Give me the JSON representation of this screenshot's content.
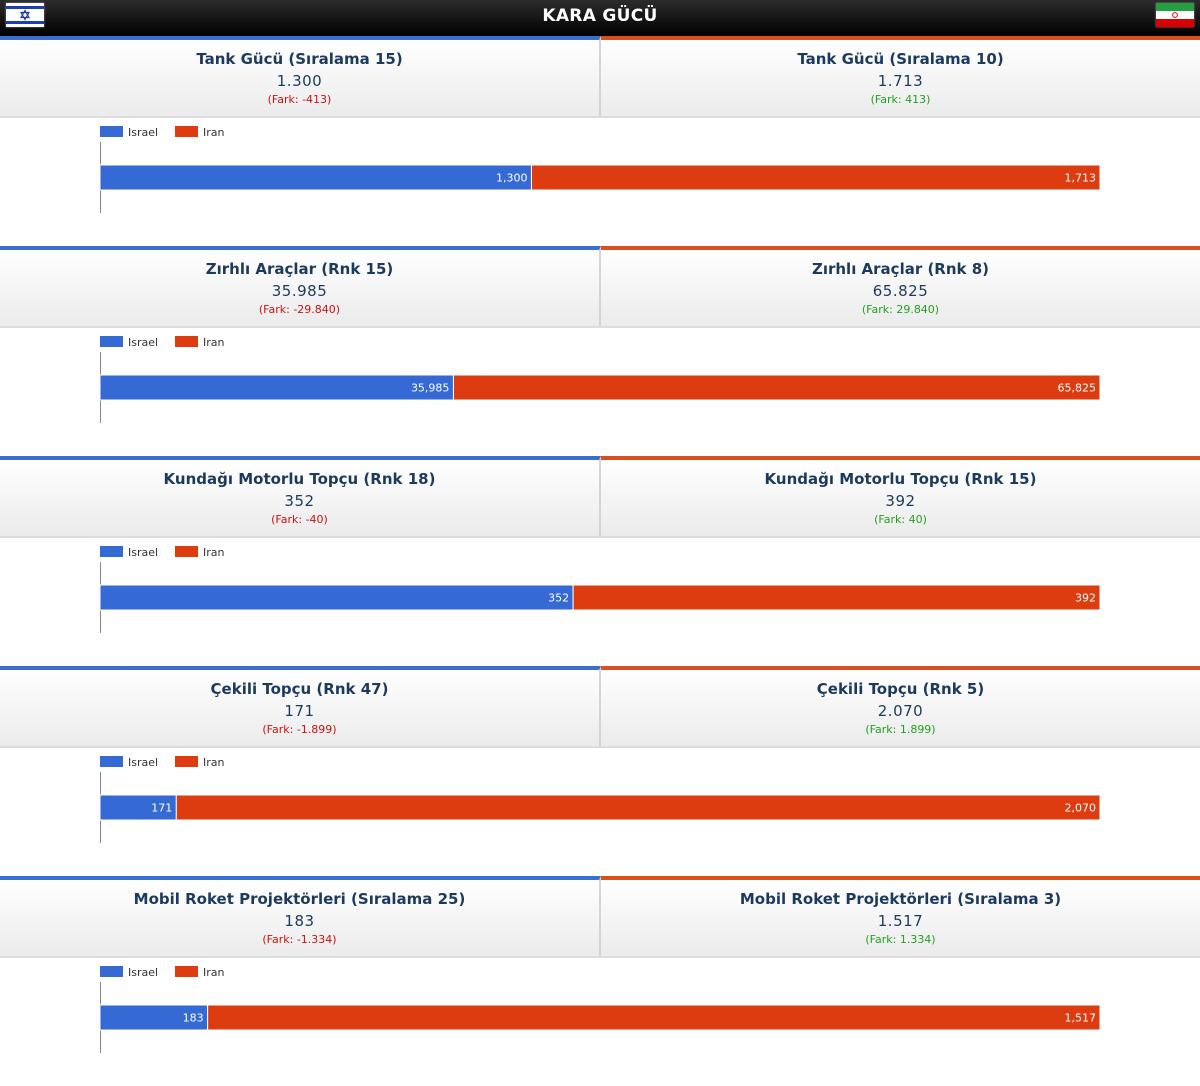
{
  "header": {
    "title": "KARA GÜCÜ",
    "left_flag": "israel-flag",
    "right_flag": "iran-flag"
  },
  "colors": {
    "israel": "#3569d3",
    "iran": "#dd3b10",
    "diff_negative": "#cc1111",
    "diff_positive": "#22a022"
  },
  "sections": [
    {
      "left": {
        "label": "Tank Gücü (Sıralama 15)",
        "value": "1.300",
        "diff": "(Fark: -413)"
      },
      "right": {
        "label": "Tank Gücü (Sıralama 10)",
        "value": "1.713",
        "diff": "(Fark: 413)"
      }
    },
    {
      "left": {
        "label": "Zırhlı Araçlar (Rnk 15)",
        "value": "35.985",
        "diff": "(Fark: -29.840)"
      },
      "right": {
        "label": "Zırhlı Araçlar (Rnk 8)",
        "value": "65.825",
        "diff": "(Fark: 29.840)"
      }
    },
    {
      "left": {
        "label": "Kundağı Motorlu Topçu (Rnk 18)",
        "value": "352",
        "diff": "(Fark: -40)"
      },
      "right": {
        "label": "Kundağı Motorlu Topçu (Rnk 15)",
        "value": "392",
        "diff": "(Fark: 40)"
      }
    },
    {
      "left": {
        "label": "Çekili Topçu (Rnk 47)",
        "value": "171",
        "diff": "(Fark: -1.899)"
      },
      "right": {
        "label": "Çekili Topçu (Rnk 5)",
        "value": "2.070",
        "diff": "(Fark: 1.899)"
      }
    },
    {
      "left": {
        "label": "Mobil Roket Projektörleri (Sıralama 25)",
        "value": "183",
        "diff": "(Fark: -1.334)"
      },
      "right": {
        "label": "Mobil Roket Projektörleri (Sıralama 3)",
        "value": "1.517",
        "diff": "(Fark: 1.334)"
      }
    }
  ],
  "chart_data": [
    {
      "type": "bar",
      "stacked": "percent",
      "orientation": "horizontal",
      "series": [
        {
          "name": "Israel",
          "values": [
            1300
          ],
          "labels": [
            "1,300"
          ]
        },
        {
          "name": "Iran",
          "values": [
            1713
          ],
          "labels": [
            "1,713"
          ]
        }
      ],
      "legend": "top-left",
      "grid": false
    },
    {
      "type": "bar",
      "stacked": "percent",
      "orientation": "horizontal",
      "series": [
        {
          "name": "Israel",
          "values": [
            35985
          ],
          "labels": [
            "35,985"
          ]
        },
        {
          "name": "Iran",
          "values": [
            65825
          ],
          "labels": [
            "65,825"
          ]
        }
      ],
      "legend": "top-left",
      "grid": false
    },
    {
      "type": "bar",
      "stacked": "percent",
      "orientation": "horizontal",
      "series": [
        {
          "name": "Israel",
          "values": [
            352
          ],
          "labels": [
            "352"
          ]
        },
        {
          "name": "Iran",
          "values": [
            392
          ],
          "labels": [
            "392"
          ]
        }
      ],
      "legend": "top-left",
      "grid": false
    },
    {
      "type": "bar",
      "stacked": "percent",
      "orientation": "horizontal",
      "series": [
        {
          "name": "Israel",
          "values": [
            171
          ],
          "labels": [
            "171"
          ]
        },
        {
          "name": "Iran",
          "values": [
            2070
          ],
          "labels": [
            "2,070"
          ]
        }
      ],
      "legend": "top-left",
      "grid": false
    },
    {
      "type": "bar",
      "stacked": "percent",
      "orientation": "horizontal",
      "series": [
        {
          "name": "Israel",
          "values": [
            183
          ],
          "labels": [
            "183"
          ]
        },
        {
          "name": "Iran",
          "values": [
            1517
          ],
          "labels": [
            "1,517"
          ]
        }
      ],
      "legend": "top-left",
      "grid": false
    }
  ]
}
